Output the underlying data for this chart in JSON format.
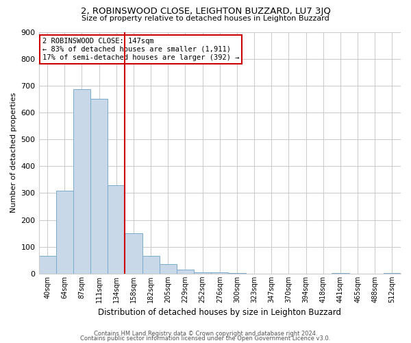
{
  "title": "2, ROBINSWOOD CLOSE, LEIGHTON BUZZARD, LU7 3JQ",
  "subtitle": "Size of property relative to detached houses in Leighton Buzzard",
  "xlabel": "Distribution of detached houses by size in Leighton Buzzard",
  "ylabel": "Number of detached properties",
  "bar_labels": [
    "40sqm",
    "64sqm",
    "87sqm",
    "111sqm",
    "134sqm",
    "158sqm",
    "182sqm",
    "205sqm",
    "229sqm",
    "252sqm",
    "276sqm",
    "300sqm",
    "323sqm",
    "347sqm",
    "370sqm",
    "394sqm",
    "418sqm",
    "441sqm",
    "465sqm",
    "488sqm",
    "512sqm"
  ],
  "bar_values": [
    65,
    308,
    688,
    651,
    330,
    150,
    65,
    35,
    14,
    5,
    5,
    2,
    0,
    0,
    0,
    0,
    0,
    2,
    0,
    0,
    3
  ],
  "bar_color": "#c8d8e8",
  "bar_edge_color": "#7aabcc",
  "vline_x": 4.5,
  "vline_color": "#cc0000",
  "annotation_title": "2 ROBINSWOOD CLOSE: 147sqm",
  "annotation_line1": "← 83% of detached houses are smaller (1,911)",
  "annotation_line2": "17% of semi-detached houses are larger (392) →",
  "annotation_box_color": "#ffffff",
  "annotation_box_edge": "#cc0000",
  "ylim": [
    0,
    900
  ],
  "yticks": [
    0,
    100,
    200,
    300,
    400,
    500,
    600,
    700,
    800,
    900
  ],
  "footer1": "Contains HM Land Registry data © Crown copyright and database right 2024.",
  "footer2": "Contains public sector information licensed under the Open Government Licence v3.0.",
  "bg_color": "#ffffff",
  "grid_color": "#cccccc"
}
